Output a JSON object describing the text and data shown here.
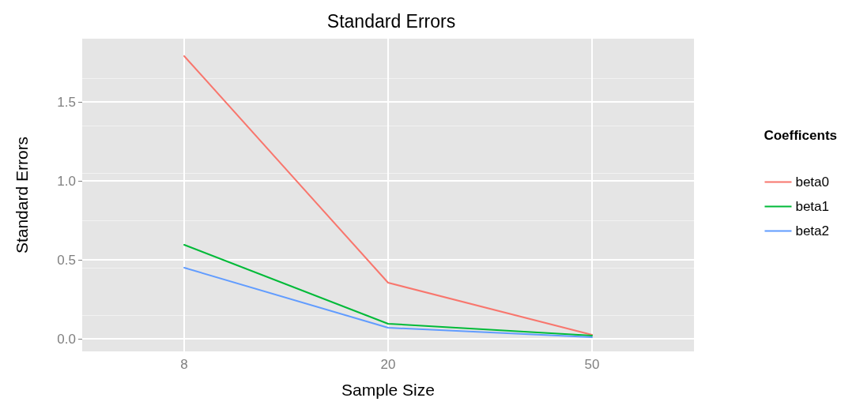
{
  "chart_data": {
    "type": "line",
    "title": "Standard Errors",
    "xlabel": "Sample Size",
    "ylabel": "Standard Errors",
    "legend_title": "Coefficents",
    "categories": [
      "8",
      "20",
      "50"
    ],
    "series": [
      {
        "name": "beta0",
        "color": "#f8766d",
        "values": [
          1.79,
          0.355,
          0.025
        ]
      },
      {
        "name": "beta1",
        "color": "#00ba38",
        "values": [
          0.595,
          0.095,
          0.02
        ]
      },
      {
        "name": "beta2",
        "color": "#619cff",
        "values": [
          0.45,
          0.07,
          0.01
        ]
      }
    ],
    "ylim": [
      -0.08,
      1.9
    ],
    "yticks": [
      {
        "value": 0,
        "label": "0.0"
      },
      {
        "value": 0.5,
        "label": "0.5"
      },
      {
        "value": 1,
        "label": "1.0"
      },
      {
        "value": 1.5,
        "label": "1.5"
      }
    ],
    "grid": true,
    "legend": "right",
    "marker": "none",
    "line_style": "solid"
  }
}
